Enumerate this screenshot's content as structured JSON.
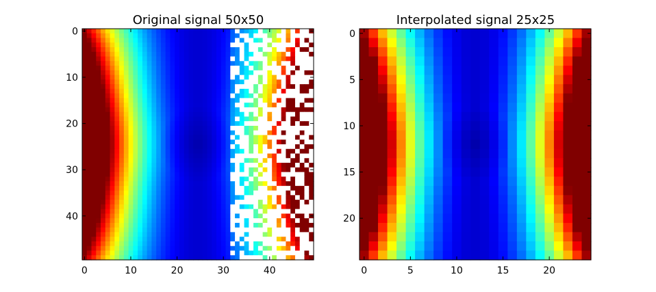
{
  "chart_data": [
    {
      "type": "heatmap",
      "title": "Original signal 50x50",
      "grid_size": [
        50,
        50
      ],
      "x_ticks": [
        0,
        10,
        20,
        30,
        40
      ],
      "y_ticks": [
        0,
        10,
        20,
        30,
        40
      ],
      "colormap": "jet",
      "value_range": [
        0,
        1
      ],
      "min_location": [
        25,
        25
      ],
      "missing_region": "columns 32-49 randomly missing (white)",
      "grid": false
    },
    {
      "type": "heatmap",
      "title": "Interpolated signal 25x25",
      "grid_size": [
        25,
        25
      ],
      "x_ticks": [
        0,
        5,
        10,
        15,
        20
      ],
      "y_ticks": [
        0,
        5,
        10,
        15,
        20
      ],
      "colormap": "jet",
      "value_range": [
        0,
        1
      ],
      "min_location": [
        12,
        12
      ],
      "grid": false
    }
  ]
}
